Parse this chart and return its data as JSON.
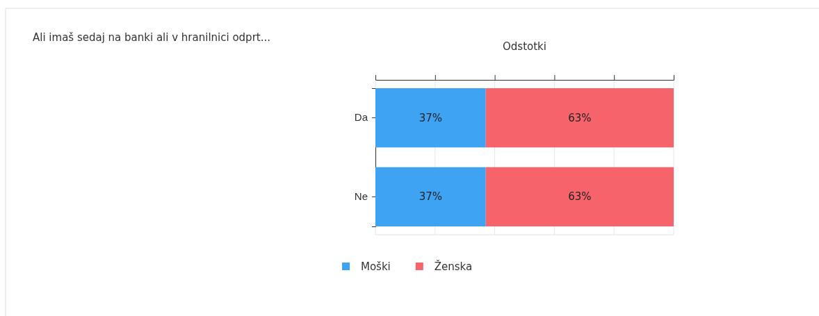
{
  "chart_data": {
    "type": "bar",
    "orientation": "horizontal",
    "stacked": true,
    "title": "Ali imaš sedaj na banki ali v hranilnici odprt...",
    "xlabel": "Odstotki",
    "categories": [
      "Da",
      "Ne"
    ],
    "series": [
      {
        "name": "Moški",
        "color": "#3ea3f3",
        "values": [
          37,
          37
        ],
        "value_labels": [
          "37%",
          "37%"
        ]
      },
      {
        "name": "Ženska",
        "color": "#f6636a",
        "values": [
          63,
          63
        ],
        "value_labels": [
          "63%",
          "63%"
        ]
      }
    ],
    "xlim": [
      0,
      100
    ],
    "xticks": [
      {
        "value": 0,
        "label": null
      },
      {
        "value": 20,
        "label": null
      },
      {
        "value": 40,
        "label": null
      },
      {
        "value": 60,
        "label": null
      },
      {
        "value": 80,
        "label": null
      },
      {
        "value": 100,
        "label": null
      }
    ],
    "tick_labels": "y",
    "grid": "x",
    "legend": "bottom"
  }
}
